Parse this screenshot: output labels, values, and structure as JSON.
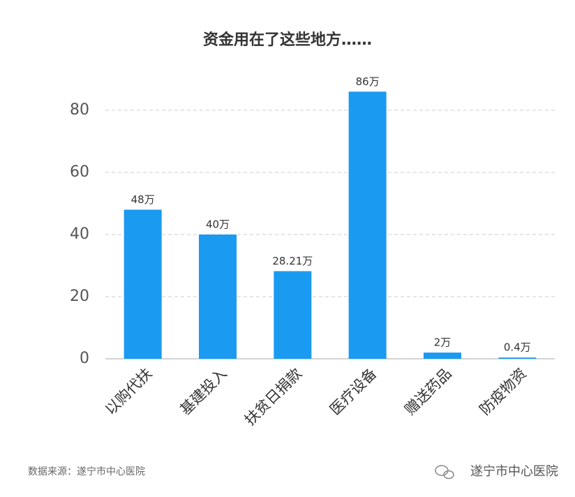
{
  "chart_data": {
    "type": "bar",
    "title": "资金用在了这些地方……",
    "categories": [
      "以购代扶",
      "基建投入",
      "扶贫日捐款",
      "医疗设备",
      "赠送药品",
      "防疫物资"
    ],
    "values": [
      48,
      40,
      28.21,
      86,
      2,
      0.4
    ],
    "value_labels": [
      "48万",
      "40万",
      "28.21万",
      "86万",
      "2万",
      "0.4万"
    ],
    "color": "#1a9af0",
    "ylim": [
      0,
      90
    ],
    "yticks": [
      0,
      20,
      40,
      60,
      80
    ],
    "grid": true
  },
  "footer": {
    "source": "数据来源：遂宁市中心医院",
    "watermark": "遂宁市中心医院"
  }
}
